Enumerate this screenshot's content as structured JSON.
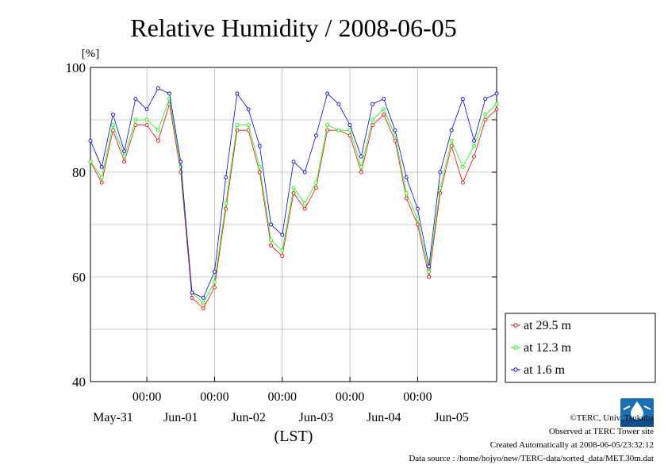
{
  "chart_data": {
    "type": "line",
    "title": "Relative Humidity / 2008-06-05",
    "ylabel": "[%]",
    "xlabel": "(LST)",
    "ylim": [
      40,
      100
    ],
    "yticks": [
      "40",
      "60",
      "80",
      "100"
    ],
    "ygrid": [
      50,
      60,
      70,
      80,
      90
    ],
    "x_time_ticks": [
      "00:00",
      "00:00",
      "00:00",
      "00:00",
      "00:00"
    ],
    "x_day_labels": [
      "May-31",
      "Jun-01",
      "Jun-02",
      "Jun-03",
      "Jun-04",
      "Jun-05"
    ],
    "x_hours_range": [
      -20,
      124
    ],
    "grid": true,
    "legend_position": "bottom-right outside",
    "series": [
      {
        "name": "at 29.5 m",
        "color": "#ff0000",
        "hours": [
          -20,
          -16,
          -12,
          -8,
          -4,
          0,
          4,
          8,
          12,
          16,
          20,
          24,
          28,
          32,
          36,
          40,
          44,
          48,
          52,
          56,
          60,
          64,
          68,
          72,
          76,
          80,
          84,
          88,
          92,
          96,
          100,
          104,
          108,
          112,
          116,
          120,
          124
        ],
        "values": [
          82,
          78,
          88,
          82,
          89,
          89,
          86,
          93,
          80,
          56,
          54,
          58,
          73,
          88,
          88,
          80,
          66,
          64,
          76,
          73,
          77,
          88,
          88,
          87,
          80,
          89,
          91,
          86,
          75,
          70,
          60,
          76,
          85,
          78,
          83,
          90,
          92
        ]
      },
      {
        "name": "at 12.3 m",
        "color": "#00ff00",
        "hours": [
          -20,
          -16,
          -12,
          -8,
          -4,
          0,
          4,
          8,
          12,
          16,
          20,
          24,
          28,
          32,
          36,
          40,
          44,
          48,
          52,
          56,
          60,
          64,
          68,
          72,
          76,
          80,
          84,
          88,
          92,
          96,
          100,
          104,
          108,
          112,
          116,
          120,
          124
        ],
        "values": [
          82,
          79,
          89,
          83,
          90,
          90,
          88,
          94,
          81,
          57,
          55,
          59,
          74,
          89,
          89,
          81,
          67,
          65,
          77,
          74,
          78,
          89,
          88,
          88,
          81,
          90,
          92,
          87,
          76,
          71,
          61,
          77,
          86,
          81,
          85,
          91,
          93
        ]
      },
      {
        "name": "at 1.6 m",
        "color": "#0000ff",
        "hours": [
          -20,
          -16,
          -12,
          -8,
          -4,
          0,
          4,
          8,
          12,
          16,
          20,
          24,
          28,
          32,
          36,
          40,
          44,
          48,
          52,
          56,
          60,
          64,
          68,
          72,
          76,
          80,
          84,
          88,
          92,
          96,
          100,
          104,
          108,
          112,
          116,
          120,
          124
        ],
        "values": [
          86,
          81,
          91,
          84,
          94,
          92,
          96,
          95,
          82,
          57,
          56,
          61,
          79,
          95,
          92,
          85,
          70,
          68,
          82,
          80,
          87,
          95,
          93,
          89,
          83,
          93,
          94,
          88,
          79,
          73,
          62,
          80,
          88,
          94,
          86,
          94,
          95
        ]
      }
    ]
  },
  "footer": {
    "copyright": "©TERC, Univ. Tsukuba",
    "site": "Observed at TERC Tower site",
    "created": "Created Automatically at 2008-06-05/23:32:12",
    "source": "Data source : /home/hojyo/new/TERC-data/sorted_data/MET.30m.dat"
  },
  "logo": {
    "text": "TERC",
    "color": "#1a6fb5"
  }
}
